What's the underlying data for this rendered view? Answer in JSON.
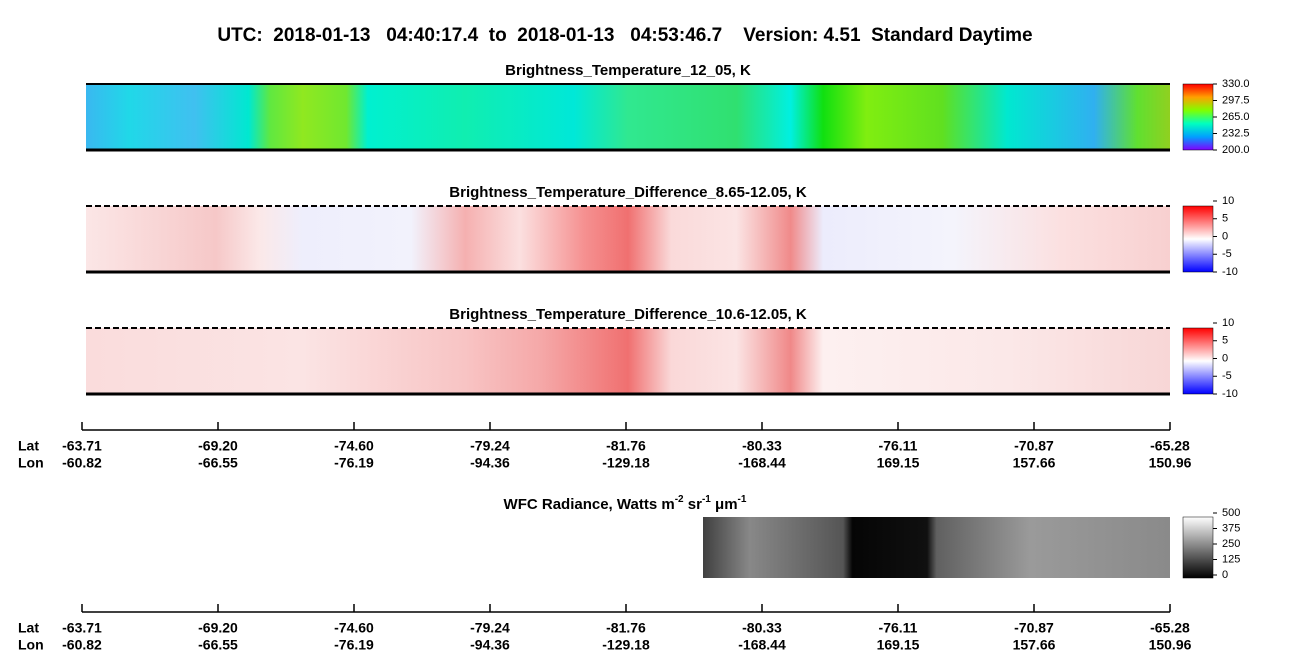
{
  "title": "UTC:  2018-01-13   04:40:17.4  to  2018-01-13   04:53:46.7    Version: 4.51  Standard Daytime",
  "panels": [
    {
      "title": "Brightness_Temperature_12_05, K",
      "colorbar": [
        "330.0",
        "297.5",
        "265.0",
        "232.5",
        "200.0"
      ]
    },
    {
      "title": "Brightness_Temperature_Difference_8.65-12.05, K",
      "colorbar": [
        "10",
        "5",
        "0",
        "-5",
        "-10"
      ]
    },
    {
      "title": "Brightness_Temperature_Difference_10.6-12.05, K",
      "colorbar": [
        "10",
        "5",
        "0",
        "-5",
        "-10"
      ]
    }
  ],
  "wfc": {
    "title_parts": [
      "WFC Radiance, Watts m",
      "-2",
      " sr",
      "-1",
      " μm",
      "-1"
    ],
    "colorbar": [
      "500",
      "375",
      "250",
      "125",
      "0"
    ]
  },
  "axis": {
    "lat_label": "Lat",
    "lon_label": "Lon",
    "lat": [
      "-63.71",
      "-69.20",
      "-74.60",
      "-79.24",
      "-81.76",
      "-80.33",
      "-76.11",
      "-70.87",
      "-65.28"
    ],
    "lon": [
      "-60.82",
      "-66.55",
      "-76.19",
      "-94.36",
      "-129.18",
      "-168.44",
      "169.15",
      "157.66",
      "150.96"
    ]
  }
}
